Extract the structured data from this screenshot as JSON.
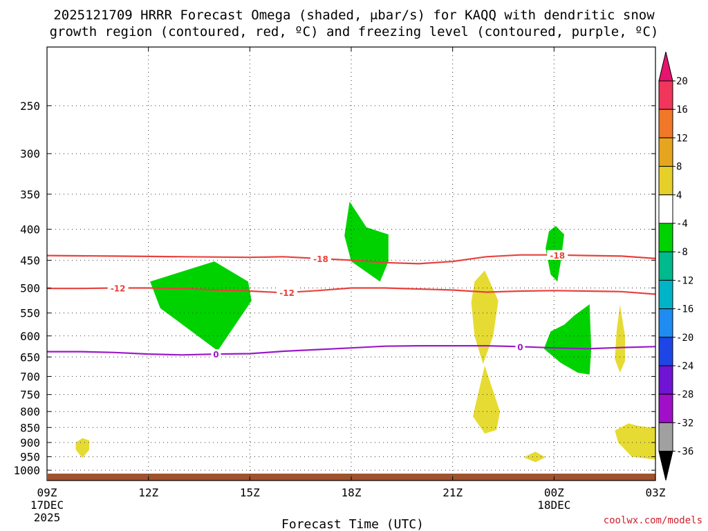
{
  "chart_data": {
    "type": "heatmap",
    "title_line1": "2025121709 HRRR Forecast Omega (shaded, μbar/s) for KAQQ with dendritic snow",
    "title_line2": "growth region (contoured, red, ºC) and freezing level (contoured, purple, ºC)",
    "xlabel": "Forecast Time (UTC)",
    "ylabel": "",
    "credit": "coolwx.com/models",
    "x_range_hours": [
      0,
      18
    ],
    "x_ticks": [
      {
        "hour": 0,
        "lines": [
          "09Z",
          "17DEC",
          "2025"
        ]
      },
      {
        "hour": 3,
        "lines": [
          "12Z"
        ]
      },
      {
        "hour": 6,
        "lines": [
          "15Z"
        ]
      },
      {
        "hour": 9,
        "lines": [
          "18Z"
        ]
      },
      {
        "hour": 12,
        "lines": [
          "21Z"
        ]
      },
      {
        "hour": 15,
        "lines": [
          "00Z",
          "18DEC"
        ]
      },
      {
        "hour": 18,
        "lines": [
          "03Z"
        ]
      }
    ],
    "y_scale": "log",
    "y_range_hpa": [
      200,
      1040
    ],
    "y_ticks": [
      250,
      300,
      350,
      400,
      450,
      500,
      550,
      600,
      650,
      700,
      750,
      800,
      850,
      900,
      950,
      1000
    ],
    "grid": true,
    "colorbar": {
      "labels": [
        "20",
        "16",
        "12",
        "8",
        "4",
        "-4",
        "-8",
        "-12",
        "-16",
        "-20",
        "-24",
        "-28",
        "-32",
        "-36"
      ],
      "boundaries": [
        20,
        16,
        12,
        8,
        4,
        -4,
        -8,
        -12,
        -16,
        -20,
        -24,
        -28,
        -32,
        -36
      ],
      "colors": [
        "#f0365a",
        "#f07828",
        "#e6a51e",
        "#e6cf28",
        "#ffffff",
        "#00d200",
        "#00b98c",
        "#00b4c8",
        "#1e8cf0",
        "#1e46e6",
        "#6e14d2",
        "#a010c8",
        "#a0a0a0"
      ],
      "top_arrow_color": "#e6146e",
      "bottom_arrow_color": "#000000"
    },
    "contours": [
      {
        "level": -18,
        "label": "-18",
        "color": "#e8413c",
        "hours": [
          0,
          2,
          4,
          6,
          7,
          8,
          9,
          10,
          11,
          12,
          13,
          14,
          15,
          16,
          17,
          18
        ],
        "hpa": [
          442,
          443,
          444,
          445,
          444,
          447,
          450,
          454,
          456,
          452,
          444,
          441,
          441,
          442,
          443,
          447
        ],
        "label_hours": [
          8.1,
          15.1
        ]
      },
      {
        "level": -12,
        "label": "-12",
        "color": "#e8413c",
        "hours": [
          0,
          1,
          2,
          3,
          4,
          5,
          6,
          7,
          8,
          9,
          10,
          11,
          12,
          13,
          14,
          15,
          16,
          17,
          18
        ],
        "hpa": [
          501,
          501,
          500,
          500,
          501,
          504,
          506,
          509,
          505,
          500,
          500,
          502,
          504,
          508,
          506,
          505,
          506,
          507,
          512
        ],
        "label_hours": [
          2.1,
          7.1
        ]
      },
      {
        "level": 0,
        "label": "0",
        "color": "#9a19c8",
        "hours": [
          0,
          1,
          2,
          3,
          4,
          5,
          6,
          7,
          8,
          9,
          10,
          11,
          12,
          13,
          14,
          15,
          16,
          17,
          18
        ],
        "hpa": [
          637,
          637,
          639,
          643,
          645,
          643,
          642,
          636,
          632,
          628,
          624,
          623,
          623,
          623,
          625,
          628,
          630,
          627,
          625
        ],
        "label_hours": [
          5.0,
          14.0
        ]
      }
    ],
    "shaded_regions": [
      {
        "color": "#00d200",
        "points": [
          [
            5.95,
            488
          ],
          [
            4.95,
            452
          ],
          [
            3.05,
            488
          ],
          [
            3.35,
            540
          ],
          [
            5.05,
            635
          ],
          [
            6.05,
            525
          ]
        ]
      },
      {
        "color": "#00d200",
        "points": [
          [
            8.95,
            360
          ],
          [
            9.45,
            397
          ],
          [
            10.1,
            408
          ],
          [
            10.1,
            452
          ],
          [
            9.85,
            488
          ],
          [
            9.0,
            452
          ],
          [
            8.8,
            410
          ]
        ]
      },
      {
        "color": "#00d200",
        "points": [
          [
            15.05,
            395
          ],
          [
            15.3,
            408
          ],
          [
            15.2,
            452
          ],
          [
            15.1,
            488
          ],
          [
            14.9,
            475
          ],
          [
            14.75,
            430
          ],
          [
            14.85,
            403
          ]
        ]
      },
      {
        "color": "#00d200",
        "points": [
          [
            16.05,
            532
          ],
          [
            16.1,
            630
          ],
          [
            16.05,
            695
          ],
          [
            15.7,
            690
          ],
          [
            15.2,
            665
          ],
          [
            14.7,
            630
          ],
          [
            14.9,
            590
          ],
          [
            15.3,
            575
          ],
          [
            15.6,
            555
          ]
        ]
      },
      {
        "color": "#e6db32",
        "points": [
          [
            12.95,
            468
          ],
          [
            13.1,
            488
          ],
          [
            13.35,
            525
          ],
          [
            13.2,
            600
          ],
          [
            12.9,
            668
          ],
          [
            12.65,
            600
          ],
          [
            12.55,
            528
          ],
          [
            12.65,
            488
          ]
        ]
      },
      {
        "color": "#e6db32",
        "points": [
          [
            12.95,
            672
          ],
          [
            13.2,
            740
          ],
          [
            13.4,
            800
          ],
          [
            13.3,
            858
          ],
          [
            12.95,
            870
          ],
          [
            12.6,
            815
          ],
          [
            12.7,
            770
          ]
        ]
      },
      {
        "color": "#e6db32",
        "points": [
          [
            16.95,
            533
          ],
          [
            17.1,
            600
          ],
          [
            17.1,
            660
          ],
          [
            16.95,
            690
          ],
          [
            16.8,
            655
          ],
          [
            16.85,
            590
          ]
        ]
      },
      {
        "color": "#e6db32",
        "points": [
          [
            17.2,
            837
          ],
          [
            17.5,
            845
          ],
          [
            18.2,
            855
          ],
          [
            18.3,
            960
          ],
          [
            18.0,
            960
          ],
          [
            17.3,
            950
          ],
          [
            16.9,
            900
          ],
          [
            16.8,
            860
          ]
        ]
      },
      {
        "color": "#e6db32",
        "points": [
          [
            1.05,
            885
          ],
          [
            1.25,
            893
          ],
          [
            1.25,
            925
          ],
          [
            1.05,
            955
          ],
          [
            0.85,
            925
          ],
          [
            0.85,
            900
          ]
        ]
      },
      {
        "color": "#e6db32",
        "points": [
          [
            14.45,
            932
          ],
          [
            14.75,
            952
          ],
          [
            14.45,
            970
          ],
          [
            14.1,
            952
          ]
        ]
      }
    ],
    "ground_color": "#a0522d",
    "ground_from_hpa": 1013
  }
}
